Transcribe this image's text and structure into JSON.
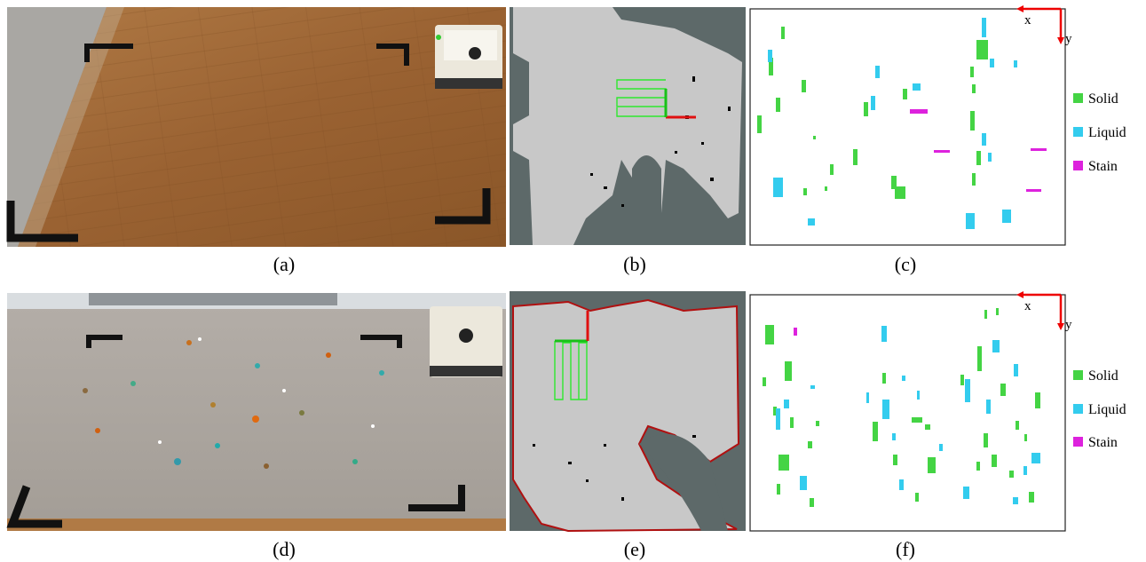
{
  "panels": {
    "a": {
      "label": "(a)"
    },
    "b": {
      "label": "(b)"
    },
    "c": {
      "label": "(c)",
      "x_axis": "x",
      "y_axis": "y",
      "legend": [
        "Solid",
        "Liquid",
        "Stain"
      ]
    },
    "d": {
      "label": "(d)"
    },
    "e": {
      "label": "(e)"
    },
    "f": {
      "label": "(f)",
      "x_axis": "x",
      "y_axis": "y",
      "legend": [
        "Solid",
        "Liquid",
        "Stain"
      ]
    }
  }
}
